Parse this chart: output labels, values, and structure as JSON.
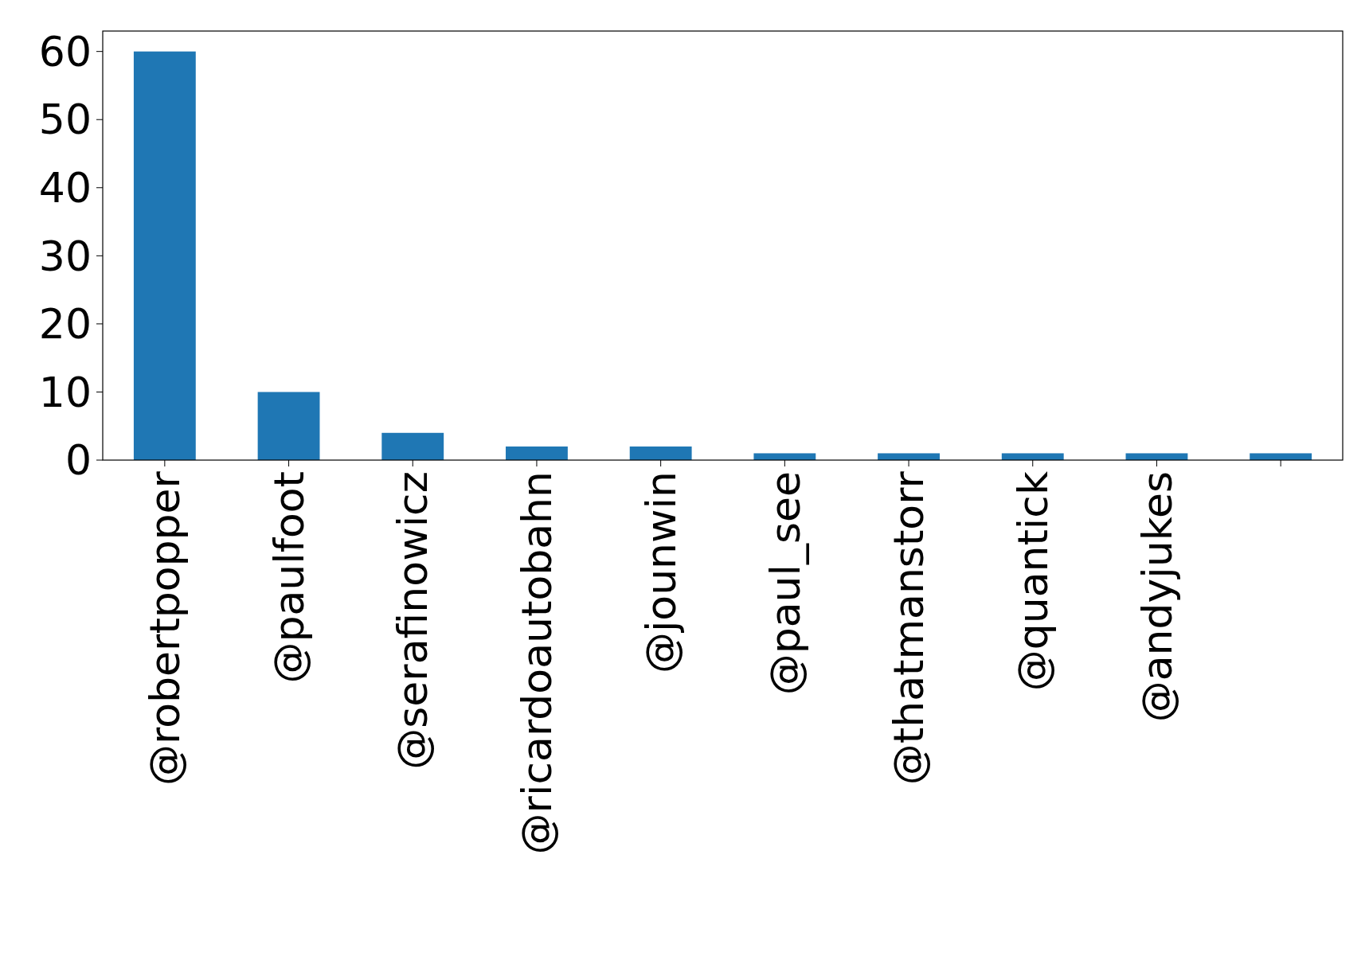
{
  "chart_data": {
    "type": "bar",
    "categories": [
      "@robertpopper",
      "@paulfoot",
      "@serafinowicz",
      "@ricardoautobahn",
      "@jounwin",
      "@paul_see",
      "@thatmanstorr",
      "@quantick",
      "@andyjukes",
      null
    ],
    "values": [
      60,
      10,
      4,
      2,
      2,
      1,
      1,
      1,
      1,
      1
    ],
    "color": "#1f77b4",
    "ylim": [
      0,
      63
    ],
    "yticks": [
      0,
      10,
      20,
      30,
      40,
      50,
      60
    ],
    "grid": false
  }
}
